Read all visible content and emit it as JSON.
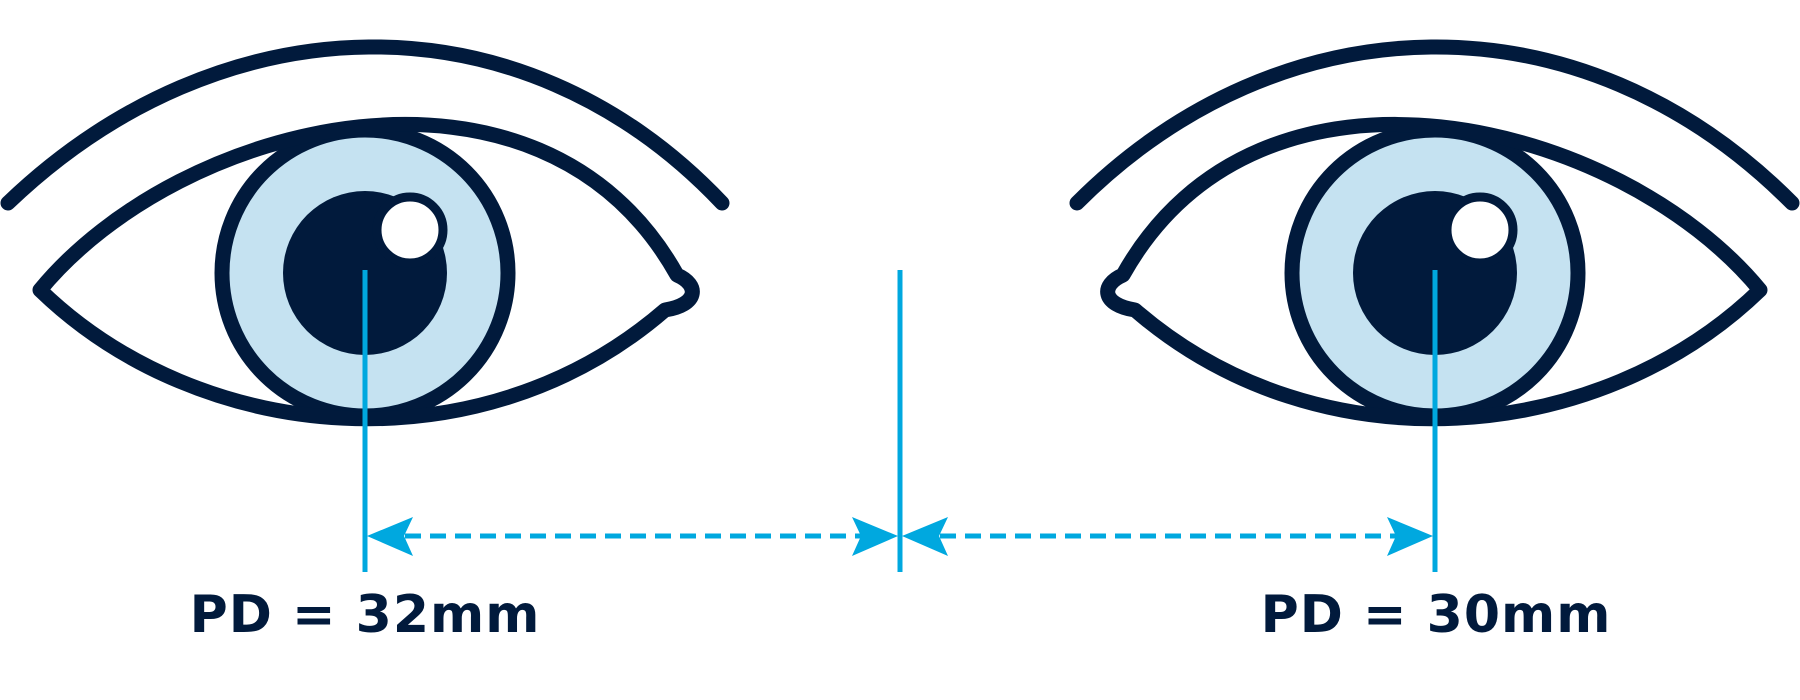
{
  "colors": {
    "outline": "#011a3c",
    "iris": "#c5e2f1",
    "pupil": "#011a3c",
    "highlight": "#ffffff",
    "measure": "#00a8df",
    "background": "#ffffff"
  },
  "labels": {
    "left_pd": "PD = 32mm",
    "right_pd": "PD = 30mm"
  },
  "icons": {
    "left_eye": "eye-icon",
    "right_eye": "eye-icon",
    "left_eyebrow": "eyebrow-icon",
    "right_eyebrow": "eyebrow-icon"
  }
}
